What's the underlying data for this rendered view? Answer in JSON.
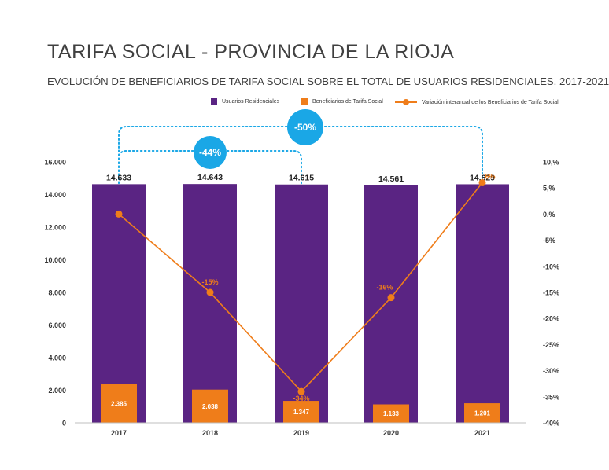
{
  "header": {
    "title": "TARIFA SOCIAL - PROVINCIA DE LA RIOJA",
    "subtitle": "EVOLUCIÓN DE BENEFICIARIOS DE TARIFA SOCIAL SOBRE EL TOTAL DE USUARIOS RESIDENCIALES. 2017-2021"
  },
  "colors": {
    "users": "#5a2483",
    "beneficiaries": "#ef7d1a",
    "variation": "#ef7d1a",
    "bubble": "#1aa7e6",
    "axis_text": "#333333"
  },
  "chart_data": {
    "type": "bar",
    "categories": [
      "2017",
      "2018",
      "2019",
      "2020",
      "2021"
    ],
    "series": [
      {
        "name": "Usuarios Residenciales",
        "type": "bar",
        "axis": "left",
        "values": [
          14633,
          14643,
          14615,
          14561,
          14629
        ],
        "labels": [
          "14.633",
          "14.643",
          "14.615",
          "14.561",
          "14.629"
        ]
      },
      {
        "name": "Beneficiarios de Tarifa Social",
        "type": "bar",
        "axis": "left",
        "values": [
          2385,
          2038,
          1347,
          1133,
          1201
        ],
        "labels": [
          "2.385",
          "2.038",
          "1.347",
          "1.133",
          "1.201"
        ]
      },
      {
        "name": "Variación interanual de los Beneficiarios de Tarifa Social",
        "type": "line",
        "axis": "right",
        "values": [
          0,
          -15,
          -34,
          -16,
          6
        ],
        "labels": [
          "",
          "-15%",
          "-34%",
          "-16%",
          "6%"
        ]
      }
    ],
    "y_left": {
      "ylim": [
        0,
        16000
      ],
      "ticks": [
        0,
        2000,
        4000,
        6000,
        8000,
        10000,
        12000,
        14000,
        16000
      ],
      "tick_labels": [
        "0",
        "2.000",
        "4.000",
        "6.000",
        "8.000",
        "10.000",
        "12.000",
        "14.000",
        "16.000"
      ]
    },
    "y_right": {
      "ylim": [
        -40,
        10
      ],
      "ticks": [
        -40,
        -35,
        -30,
        -25,
        -20,
        -15,
        -10,
        -5,
        0,
        5,
        10
      ],
      "tick_labels": [
        "-40%",
        "-35%",
        "-30%",
        "-25%",
        "-20%",
        "-15%",
        "-10%",
        "-5%",
        "0,%",
        "5,%",
        "10,%"
      ]
    },
    "annotations": [
      {
        "label": "-44%",
        "from": "2017",
        "to": "2019"
      },
      {
        "label": "-50%",
        "from": "2017",
        "to": "2021"
      }
    ],
    "legend_position": "top",
    "grid": false
  }
}
